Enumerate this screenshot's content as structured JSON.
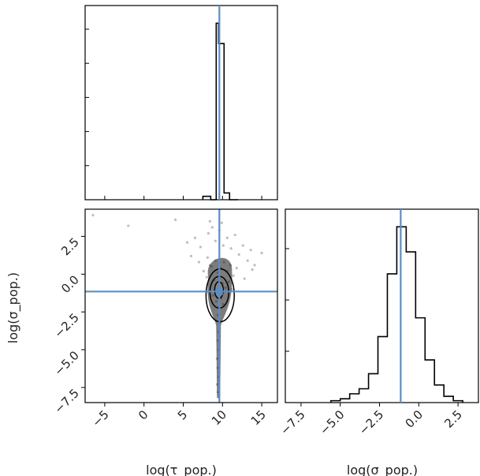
{
  "colors": {
    "truth": "#5b8ec3",
    "outline": "#000000",
    "sample": "#6e6e6e",
    "background": "#ffffff"
  },
  "chart_data": [
    {
      "panel": "tau-marginal",
      "type": "histogram",
      "xlim": [
        -7.5,
        17
      ],
      "bin_edges": [
        7.5,
        8.5,
        9.2,
        9.5,
        10.2,
        10.9,
        12.0
      ],
      "heights": [
        0.5,
        0,
        26,
        23,
        1,
        0
      ],
      "truth": 9.6,
      "ytick_marks": [
        0,
        1,
        2,
        3,
        4,
        5
      ]
    },
    {
      "panel": "sigma-marginal",
      "type": "histogram",
      "xlim": [
        -8.5,
        3.8
      ],
      "bin_edges": [
        -5.6,
        -5.0,
        -4.4,
        -3.8,
        -3.2,
        -2.6,
        -2.0,
        -1.4,
        -0.8,
        -0.2,
        0.4,
        1.0,
        1.6,
        2.2,
        2.8
      ],
      "heights": [
        0.3,
        0.6,
        1.4,
        2.2,
        4.6,
        10.5,
        20.5,
        28.0,
        24.0,
        13.5,
        6.8,
        2.8,
        1.0,
        0.3
      ],
      "truth": -1.15
    },
    {
      "panel": "joint",
      "type": "scatter",
      "xlim": [
        -7.5,
        17
      ],
      "ylim": [
        -8.5,
        4.3
      ],
      "truth": {
        "x": 9.6,
        "y": -1.15
      },
      "xlabel": "log(τ_pop.)",
      "ylabel": "log(σ_pop.)",
      "xticks": [
        "−5",
        "0",
        "5",
        "10",
        "15"
      ],
      "yticks": [
        "−7.5",
        "−5.0",
        "−2.5",
        "0.0",
        "2.5"
      ],
      "sample_points": [
        [
          -6.5,
          3.9
        ],
        [
          -2.0,
          3.2
        ],
        [
          4.0,
          3.6
        ],
        [
          6.5,
          2.4
        ],
        [
          7.2,
          1.8
        ],
        [
          8.2,
          2.7
        ],
        [
          8.7,
          3.1
        ],
        [
          9.1,
          2.2
        ],
        [
          9.6,
          2.9
        ],
        [
          10.1,
          1.9
        ],
        [
          10.6,
          2.4
        ],
        [
          11.1,
          1.7
        ],
        [
          11.6,
          2.6
        ],
        [
          12.1,
          1.3
        ],
        [
          12.6,
          1.9
        ],
        [
          13.2,
          0.9
        ],
        [
          13.6,
          1.6
        ],
        [
          14.1,
          0.6
        ],
        [
          8.1,
          1.1
        ],
        [
          8.6,
          0.5
        ],
        [
          9.1,
          0.9
        ],
        [
          9.4,
          0.1
        ],
        [
          9.8,
          0.4
        ],
        [
          10.2,
          0.8
        ],
        [
          10.6,
          0.2
        ],
        [
          11.0,
          0.6
        ],
        [
          11.4,
          -0.1
        ],
        [
          11.8,
          0.4
        ],
        [
          7.6,
          0.2
        ],
        [
          8.0,
          -0.2
        ],
        [
          8.4,
          0.6
        ],
        [
          8.9,
          -0.4
        ],
        [
          9.2,
          -0.7
        ],
        [
          9.6,
          -0.3
        ],
        [
          10.0,
          -0.6
        ],
        [
          10.4,
          -0.9
        ],
        [
          10.8,
          -0.5
        ],
        [
          11.2,
          -1.0
        ],
        [
          8.8,
          -1.4
        ],
        [
          9.2,
          -1.8
        ],
        [
          9.5,
          -2.2
        ],
        [
          9.8,
          -1.6
        ],
        [
          10.1,
          -2.0
        ],
        [
          9.4,
          -2.7
        ],
        [
          9.6,
          -3.2
        ],
        [
          9.5,
          -3.8
        ],
        [
          9.4,
          -4.4
        ],
        [
          9.5,
          -5.0
        ],
        [
          9.3,
          -5.6
        ],
        [
          9.4,
          -6.2
        ],
        [
          9.5,
          -6.8
        ],
        [
          9.3,
          -7.3
        ],
        [
          9.4,
          -7.8
        ],
        [
          7.0,
          0.8
        ],
        [
          6.0,
          1.2
        ],
        [
          12.8,
          -0.3
        ],
        [
          13.8,
          0.3
        ],
        [
          15.0,
          1.4
        ],
        [
          5.5,
          2.1
        ],
        [
          9.9,
          3.4
        ],
        [
          8.4,
          3.5
        ]
      ],
      "contours": [
        {
          "cx": 9.55,
          "cy": -1.05,
          "rx": 0.55,
          "ry": 0.55
        },
        {
          "cx": 9.6,
          "cy": -1.2,
          "rx": 1.2,
          "ry": 1.05
        },
        {
          "cx": 9.7,
          "cy": -1.4,
          "rx": 1.8,
          "ry": 1.75
        }
      ]
    },
    {
      "panel": "sigma-x-axis",
      "type": "axis",
      "xlabel": "log(σ_pop.)",
      "xticks": [
        "−7.5",
        "−5.0",
        "−2.5",
        "0.0",
        "2.5"
      ]
    }
  ]
}
